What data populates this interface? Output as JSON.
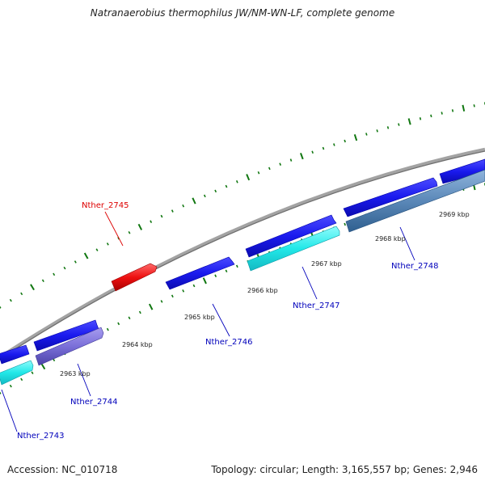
{
  "title": "Natranaerobius thermophilus JW/NM-WN-LF, complete genome",
  "footer": {
    "accession": "Accession: NC_010718",
    "summary": "Topology: circular; Length: 3,165,557 bp; Genes: 2,946"
  },
  "scale_labels": [
    {
      "kbp": 2963,
      "text": "2963 kbp"
    },
    {
      "kbp": 2964,
      "text": "2964 kbp"
    },
    {
      "kbp": 2965,
      "text": "2965 kbp"
    },
    {
      "kbp": 2966,
      "text": "2966 kbp"
    },
    {
      "kbp": 2967,
      "text": "2967 kbp"
    },
    {
      "kbp": 2968,
      "text": "2968 kbp"
    },
    {
      "kbp": 2969,
      "text": "2969 kbp"
    }
  ],
  "genes": [
    {
      "name": "Nther_2743",
      "color": "#0000bb"
    },
    {
      "name": "Nther_2744",
      "color": "#0000bb"
    },
    {
      "name": "Nther_2745",
      "color": "#dd0000"
    },
    {
      "name": "Nther_2746",
      "color": "#0000bb"
    },
    {
      "name": "Nther_2747",
      "color": "#0000bb"
    },
    {
      "name": "Nther_2748",
      "color": "#0000bb"
    }
  ],
  "colors": {
    "backbone": "#8c8c8c",
    "cds_forward": "#1a1aee",
    "cds_reverse": "#2f2fdd",
    "rrna_cyan": "#22e8e8",
    "purple_feature": "#7a6fd8",
    "steelblue_feature": "#5b88b8",
    "red_feature": "#ee1111",
    "tick_green": "#117711"
  }
}
